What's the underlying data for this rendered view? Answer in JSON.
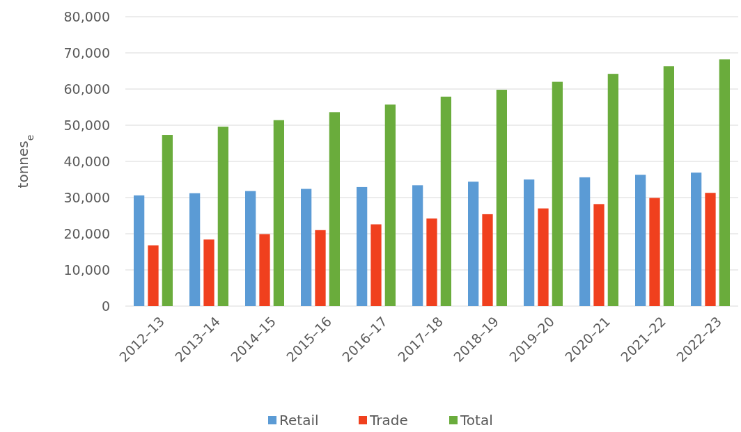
{
  "chart_data": {
    "type": "bar",
    "ylabel": "tonnes$_{e}$",
    "categories": [
      "2012–13",
      "2013–14",
      "2014–15",
      "2015–16",
      "2016–17",
      "2017–18",
      "2018–19",
      "2019–20",
      "2020–21",
      "2021–22",
      "2022–23"
    ],
    "series": [
      {
        "name": "Retail",
        "color": "#5b9bd5",
        "values": [
          30600,
          31200,
          31800,
          32400,
          32900,
          33400,
          34400,
          35000,
          35600,
          36300,
          36900
        ]
      },
      {
        "name": "Trade",
        "color": "#f0401e",
        "values": [
          16800,
          18400,
          19900,
          21000,
          22600,
          24200,
          25400,
          27000,
          28200,
          29900,
          31300
        ]
      },
      {
        "name": "Total",
        "color": "#6aac3c",
        "values": [
          47300,
          49600,
          51400,
          53600,
          55700,
          57900,
          59800,
          62000,
          64200,
          66300,
          68200
        ]
      }
    ],
    "ylim": [
      0,
      80000
    ],
    "yticks": [
      {
        "value": 0,
        "label": "0"
      },
      {
        "value": 10000,
        "label": "10,000"
      },
      {
        "value": 20000,
        "label": "20,000"
      },
      {
        "value": 30000,
        "label": "30,000"
      },
      {
        "value": 40000,
        "label": "40,000"
      },
      {
        "value": 50000,
        "label": "50,000"
      },
      {
        "value": 60000,
        "label": "60,000"
      },
      {
        "value": 70000,
        "label": "70,000"
      },
      {
        "value": 80000,
        "label": "80,000"
      }
    ],
    "grid": "y",
    "legend": "bottom"
  }
}
